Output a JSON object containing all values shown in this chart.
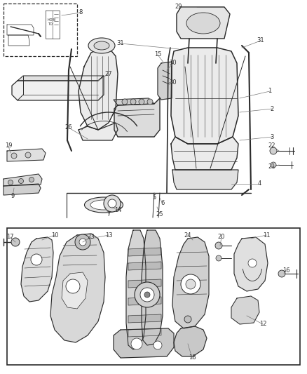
{
  "bg_color": "#ffffff",
  "line_color": "#2a2a2a",
  "fig_width": 4.38,
  "fig_height": 5.33,
  "dpi": 100,
  "label_fs": 6.5,
  "label_color": "#444444"
}
